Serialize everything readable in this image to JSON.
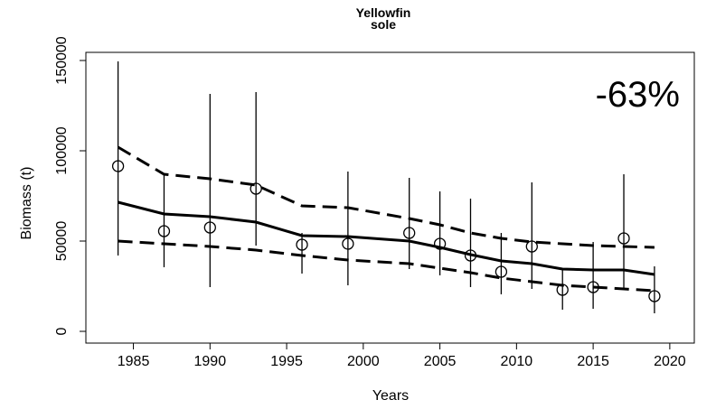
{
  "chart_data": {
    "type": "scatter",
    "title_lines": [
      "Yellowfin",
      "sole"
    ],
    "xlabel": "Years",
    "ylabel": "Biomass (t)",
    "annotation": "-63%",
    "annotation_color": "#c00000",
    "color": "#000000",
    "xlim": [
      1981.9,
      2021.6
    ],
    "ylim": [
      -6500,
      154500
    ],
    "xticks": [
      1985,
      1990,
      1995,
      2000,
      2005,
      2010,
      2015,
      2020
    ],
    "yticks": [
      0,
      50000,
      100000,
      150000
    ],
    "points": {
      "x": [
        1984,
        1987,
        1990,
        1993,
        1996,
        1999,
        2003,
        2005,
        2007,
        2009,
        2011,
        2013,
        2015,
        2017,
        2019
      ],
      "values": [
        91500,
        55500,
        57500,
        79000,
        48000,
        48500,
        54500,
        48500,
        42000,
        33000,
        47000,
        23000,
        24500,
        51500,
        19500
      ],
      "lower": [
        42000,
        35500,
        24500,
        47500,
        32000,
        25500,
        34500,
        31000,
        24500,
        20500,
        23500,
        12000,
        12500,
        23500,
        10000
      ],
      "upper": [
        149500,
        87500,
        131500,
        132500,
        54500,
        88500,
        85000,
        77500,
        73500,
        54500,
        82500,
        35000,
        49500,
        87000,
        36000
      ]
    },
    "lines": [
      {
        "style": "solid",
        "x": [
          1984,
          1987,
          1990,
          1993,
          1996,
          1999,
          2003,
          2005,
          2007,
          2009,
          2011,
          2013,
          2015,
          2017,
          2019
        ],
        "values": [
          71500,
          65000,
          63500,
          60500,
          53000,
          52500,
          50000,
          46500,
          42500,
          39000,
          37500,
          34500,
          34000,
          34000,
          31500
        ]
      },
      {
        "style": "dashed",
        "x": [
          1984,
          1987,
          1990,
          1993,
          1996,
          1999,
          2003,
          2005,
          2007,
          2009,
          2011,
          2013,
          2015,
          2017,
          2019
        ],
        "values": [
          102000,
          87000,
          84500,
          81000,
          69500,
          68500,
          62500,
          59000,
          54500,
          51500,
          49500,
          48500,
          47500,
          47000,
          46500
        ]
      },
      {
        "style": "dashed",
        "x": [
          1984,
          1987,
          1990,
          1993,
          1996,
          1999,
          2003,
          2005,
          2007,
          2009,
          2011,
          2013,
          2015,
          2017,
          2019
        ],
        "values": [
          50000,
          48500,
          47000,
          45000,
          42000,
          39500,
          37500,
          35000,
          32500,
          29500,
          27500,
          25500,
          24500,
          23500,
          22500
        ]
      }
    ]
  }
}
